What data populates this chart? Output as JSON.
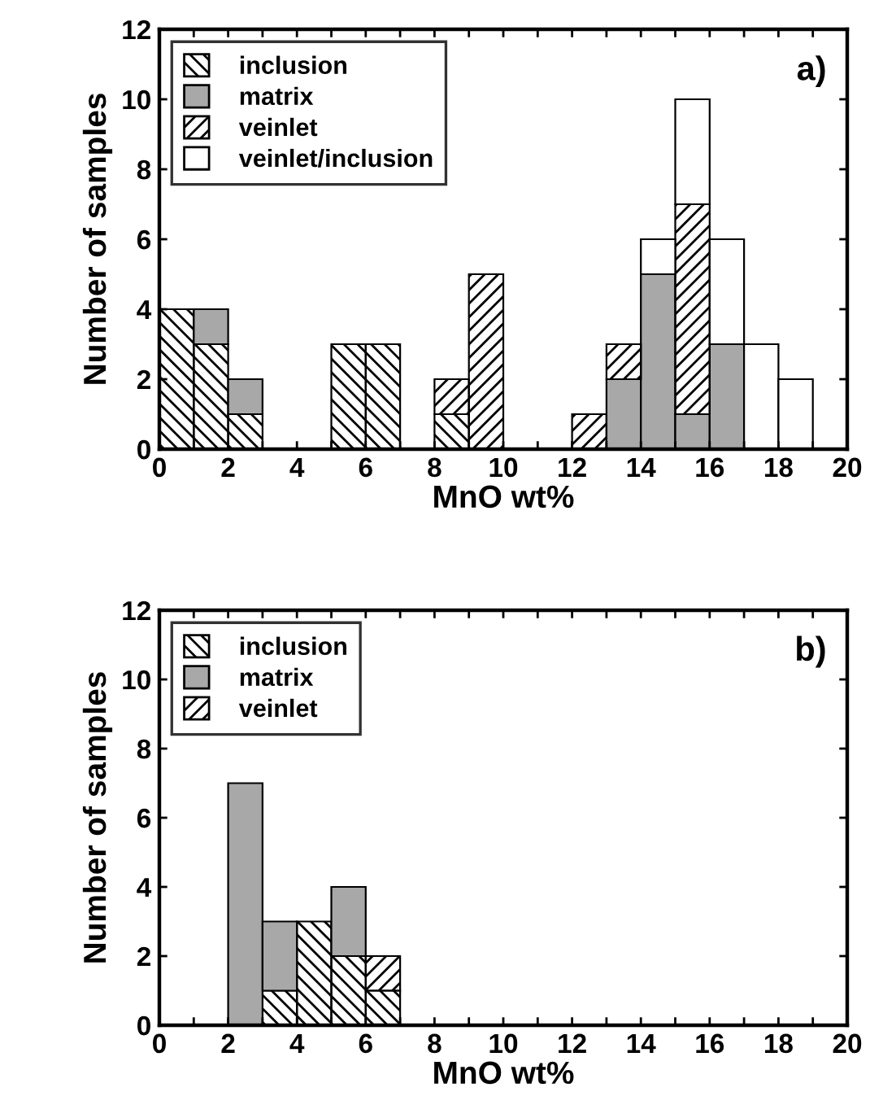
{
  "chart_data": [
    {
      "type": "bar",
      "xlabel": "MnO wt%",
      "ylabel": "Number of samples",
      "annotations": [
        "a)"
      ],
      "stacked": true,
      "legend": "top left",
      "x": [
        0.5,
        1.5,
        2.5,
        3.5,
        4.5,
        5.5,
        6.5,
        7.5,
        8.5,
        9.5,
        10.5,
        11.5,
        12.5,
        13.5,
        14.5,
        15.5,
        16.5,
        17.5,
        18.5,
        19.5
      ],
      "series": [
        {
          "name": "inclusion",
          "color": "#000000",
          "values": [
            4,
            3,
            1,
            0,
            0,
            3,
            3,
            0,
            1,
            0,
            0,
            0,
            0,
            0,
            0,
            0,
            0,
            0,
            0,
            0
          ]
        },
        {
          "name": "matrix",
          "color": "#a8a8a8",
          "values": [
            0,
            1,
            1,
            0,
            0,
            0,
            0,
            0,
            0,
            0,
            0,
            0,
            0,
            2,
            5,
            1,
            3,
            0,
            0,
            0
          ]
        },
        {
          "name": "veinlet",
          "color": "#000000",
          "values": [
            0,
            0,
            0,
            0,
            0,
            0,
            0,
            0,
            1,
            5,
            0,
            0,
            1,
            1,
            0,
            6,
            0,
            0,
            0,
            0
          ]
        },
        {
          "name": "veinlet/inclusion",
          "color": "#ffffff",
          "values": [
            0,
            0,
            0,
            0,
            0,
            0,
            0,
            0,
            0,
            0,
            0,
            0,
            0,
            0,
            1,
            3,
            3,
            3,
            2,
            0
          ]
        }
      ],
      "xlim": [
        0,
        20
      ],
      "ylim": [
        0,
        12
      ],
      "xticks": [
        0,
        {
          "value": 1,
          "label": null
        },
        2,
        {
          "value": 3,
          "label": null
        },
        4,
        {
          "value": 5,
          "label": null
        },
        6,
        {
          "value": 7,
          "label": null
        },
        8,
        {
          "value": 9,
          "label": null
        },
        10,
        {
          "value": 11,
          "label": null
        },
        12,
        {
          "value": 13,
          "label": null
        },
        14,
        {
          "value": 15,
          "label": null
        },
        16,
        {
          "value": 17,
          "label": null
        },
        18,
        {
          "value": 19,
          "label": null
        },
        20
      ],
      "yticks": [
        0,
        2,
        4,
        6,
        8,
        10,
        12
      ]
    },
    {
      "type": "bar",
      "xlabel": "MnO wt%",
      "ylabel": "Number of samples",
      "annotations": [
        "b)"
      ],
      "stacked": true,
      "legend": "top left",
      "x": [
        0.5,
        1.5,
        2.5,
        3.5,
        4.5,
        5.5,
        6.5,
        7.5,
        8.5,
        9.5,
        10.5,
        11.5,
        12.5,
        13.5,
        14.5,
        15.5,
        16.5,
        17.5,
        18.5,
        19.5
      ],
      "series": [
        {
          "name": "inclusion",
          "color": "#000000",
          "values": [
            0,
            0,
            0,
            1,
            3,
            2,
            1,
            0,
            0,
            0,
            0,
            0,
            0,
            0,
            0,
            0,
            0,
            0,
            0,
            0
          ]
        },
        {
          "name": "matrix",
          "color": "#a8a8a8",
          "values": [
            0,
            0,
            7,
            2,
            0,
            2,
            0,
            0,
            0,
            0,
            0,
            0,
            0,
            0,
            0,
            0,
            0,
            0,
            0,
            0
          ]
        },
        {
          "name": "veinlet",
          "color": "#000000",
          "values": [
            0,
            0,
            0,
            0,
            0,
            0,
            1,
            0,
            0,
            0,
            0,
            0,
            0,
            0,
            0,
            0,
            0,
            0,
            0,
            0
          ]
        }
      ],
      "xlim": [
        0,
        20
      ],
      "ylim": [
        0,
        12
      ],
      "xticks": [
        0,
        {
          "value": 1,
          "label": null
        },
        2,
        {
          "value": 3,
          "label": null
        },
        4,
        {
          "value": 5,
          "label": null
        },
        6,
        {
          "value": 7,
          "label": null
        },
        8,
        {
          "value": 9,
          "label": null
        },
        10,
        {
          "value": 11,
          "label": null
        },
        12,
        {
          "value": 13,
          "label": null
        },
        14,
        {
          "value": 15,
          "label": null
        },
        16,
        {
          "value": 17,
          "label": null
        },
        18,
        {
          "value": 19,
          "label": null
        },
        20
      ],
      "yticks": [
        0,
        2,
        4,
        6,
        8,
        10,
        12
      ]
    }
  ]
}
